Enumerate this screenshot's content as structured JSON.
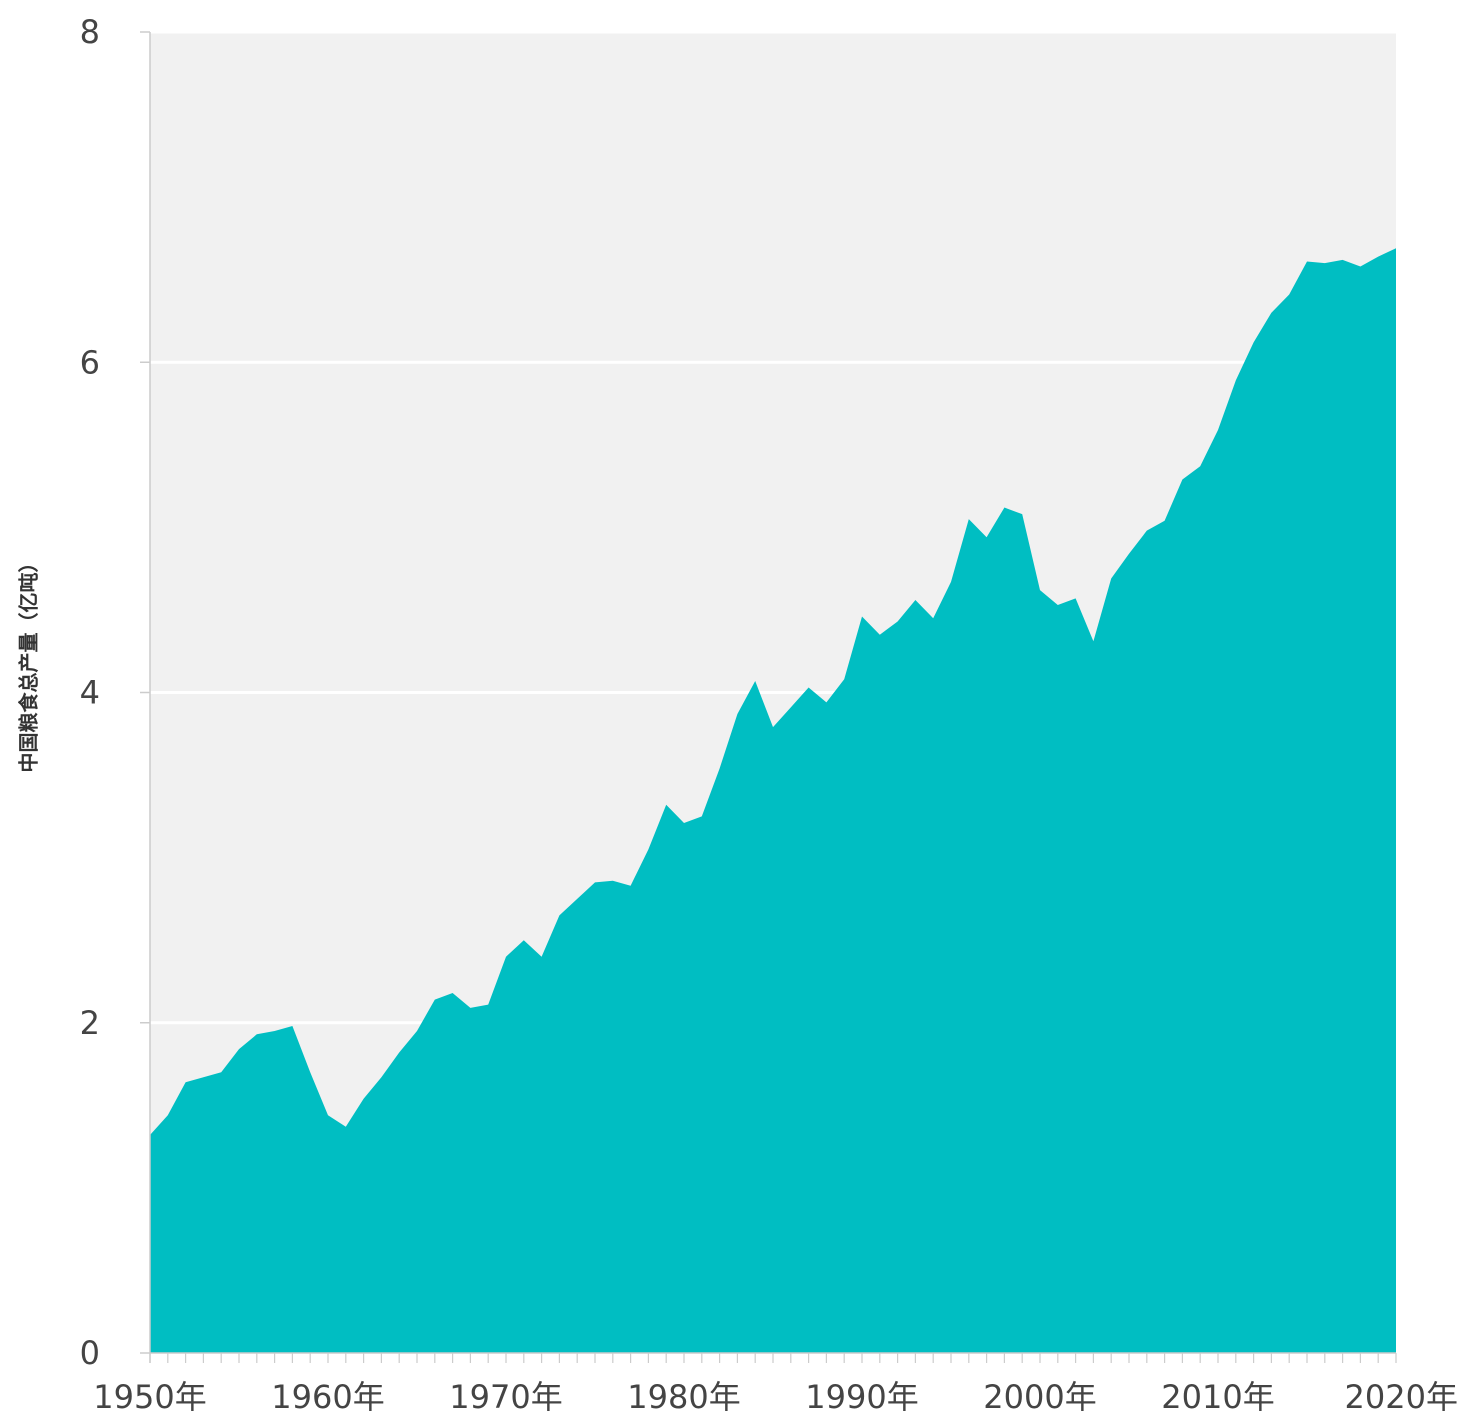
{
  "chart_data": {
    "type": "area",
    "title": "",
    "xlabel": "",
    "ylabel": "中国粮食总产量（亿吨）",
    "xlim": [
      1950,
      2020
    ],
    "ylim": [
      0,
      8
    ],
    "yticks": [
      "0",
      "2",
      "4",
      "6",
      "8"
    ],
    "xticks": [
      {
        "value": 1950,
        "label": "1950年"
      },
      {
        "value": 1960,
        "label": "1960年"
      },
      {
        "value": 1970,
        "label": "1970年"
      },
      {
        "value": 1980,
        "label": "1980年"
      },
      {
        "value": 1990,
        "label": "1990年"
      },
      {
        "value": 2000,
        "label": "2000年"
      },
      {
        "value": 2010,
        "label": "2010年"
      },
      {
        "value": 2020,
        "label": "2020年"
      }
    ],
    "grid": true,
    "colors": {
      "fill": "#00BEC2",
      "plot_background": "#F1F1F1",
      "grid": "#FFFFFF",
      "axis": "#CCCCCC"
    },
    "x": [
      1950,
      1951,
      1952,
      1953,
      1954,
      1955,
      1956,
      1957,
      1958,
      1959,
      1960,
      1961,
      1962,
      1963,
      1964,
      1965,
      1966,
      1967,
      1968,
      1969,
      1970,
      1971,
      1972,
      1973,
      1974,
      1975,
      1976,
      1977,
      1978,
      1979,
      1980,
      1981,
      1982,
      1983,
      1984,
      1985,
      1986,
      1987,
      1988,
      1989,
      1990,
      1991,
      1992,
      1993,
      1994,
      1995,
      1996,
      1997,
      1998,
      1999,
      2000,
      2001,
      2002,
      2003,
      2004,
      2005,
      2006,
      2007,
      2008,
      2009,
      2010,
      2011,
      2012,
      2013,
      2014,
      2015,
      2016,
      2017,
      2018,
      2019,
      2020
    ],
    "values": [
      1.32,
      1.44,
      1.64,
      1.67,
      1.7,
      1.84,
      1.93,
      1.95,
      1.98,
      1.7,
      1.44,
      1.37,
      1.54,
      1.67,
      1.82,
      1.95,
      2.14,
      2.18,
      2.09,
      2.11,
      2.4,
      2.5,
      2.4,
      2.65,
      2.75,
      2.85,
      2.86,
      2.83,
      3.05,
      3.32,
      3.21,
      3.25,
      3.54,
      3.87,
      4.07,
      3.79,
      3.91,
      4.03,
      3.94,
      4.08,
      4.46,
      4.35,
      4.43,
      4.56,
      4.45,
      4.67,
      5.05,
      4.94,
      5.12,
      5.08,
      4.62,
      4.53,
      4.57,
      4.31,
      4.69,
      4.84,
      4.98,
      5.04,
      5.29,
      5.37,
      5.59,
      5.89,
      6.12,
      6.3,
      6.41,
      6.61,
      6.6,
      6.62,
      6.58,
      6.64,
      6.69
    ]
  }
}
